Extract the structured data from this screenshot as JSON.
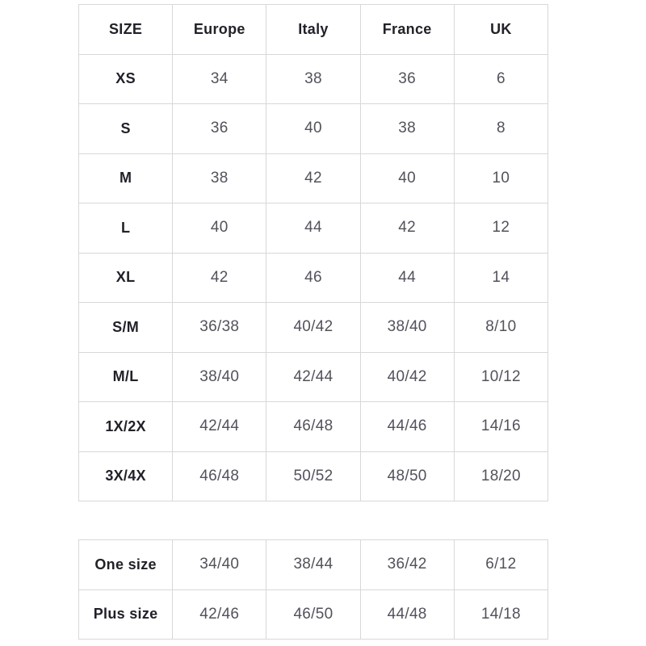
{
  "colors": {
    "background": "#ffffff",
    "border": "#d8d8d8",
    "header_text": "#212129",
    "value_text": "#52525c"
  },
  "size_table": {
    "columns": [
      "SIZE",
      "Europe",
      "Italy",
      "France",
      "UK"
    ],
    "rows": [
      {
        "label": "XS",
        "values": [
          "34",
          "38",
          "36",
          "6"
        ]
      },
      {
        "label": "S",
        "values": [
          "36",
          "40",
          "38",
          "8"
        ]
      },
      {
        "label": "M",
        "values": [
          "38",
          "42",
          "40",
          "10"
        ]
      },
      {
        "label": "L",
        "values": [
          "40",
          "44",
          "42",
          "12"
        ]
      },
      {
        "label": "XL",
        "values": [
          "42",
          "46",
          "44",
          "14"
        ]
      },
      {
        "label": "S/M",
        "values": [
          "36/38",
          "40/42",
          "38/40",
          "8/10"
        ]
      },
      {
        "label": "M/L",
        "values": [
          "38/40",
          "42/44",
          "40/42",
          "10/12"
        ]
      },
      {
        "label": "1X/2X",
        "values": [
          "42/44",
          "46/48",
          "44/46",
          "14/16"
        ]
      },
      {
        "label": "3X/4X",
        "values": [
          "46/48",
          "50/52",
          "48/50",
          "18/20"
        ]
      }
    ]
  },
  "special_size_table": {
    "rows": [
      {
        "label": "One size",
        "values": [
          "34/40",
          "38/44",
          "36/42",
          "6/12"
        ]
      },
      {
        "label": "Plus size",
        "values": [
          "42/46",
          "46/50",
          "44/48",
          "14/18"
        ]
      }
    ]
  }
}
